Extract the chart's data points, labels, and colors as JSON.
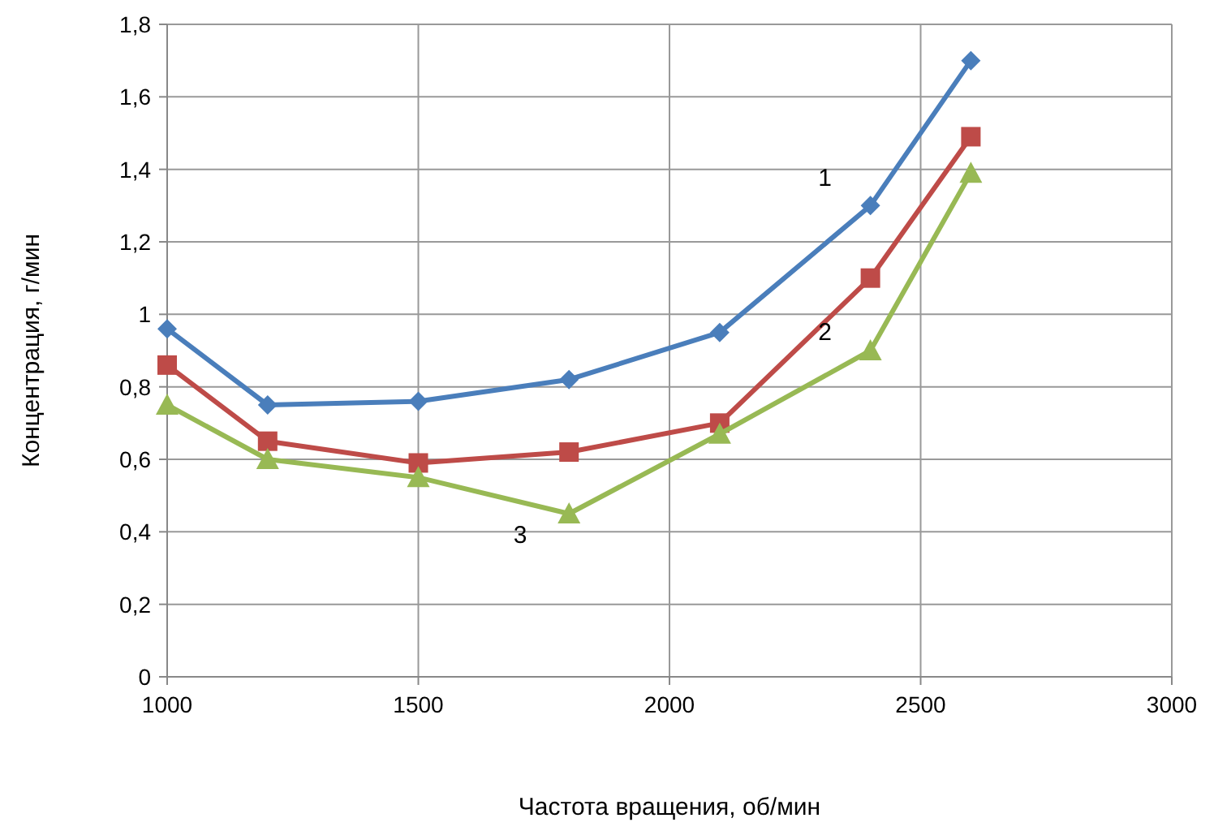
{
  "chart_data": {
    "type": "line",
    "xlabel": "Частота вращения, об/мин",
    "ylabel": "Концентрация, г/мин",
    "x": [
      1000,
      1200,
      1500,
      1800,
      2100,
      2400,
      2600
    ],
    "series": [
      {
        "name": "1",
        "color": "#4a7ebb",
        "marker": "diamond",
        "values": [
          0.96,
          0.75,
          0.76,
          0.82,
          0.95,
          1.3,
          1.7
        ]
      },
      {
        "name": "2",
        "color": "#be4b48",
        "marker": "square",
        "values": [
          0.86,
          0.65,
          0.59,
          0.62,
          0.7,
          1.1,
          1.49
        ]
      },
      {
        "name": "3",
        "color": "#98b954",
        "marker": "triangle",
        "values": [
          0.75,
          0.6,
          0.55,
          0.45,
          0.67,
          0.9,
          1.39
        ]
      }
    ],
    "xlim": [
      1000,
      3000
    ],
    "xticks": [
      1000,
      1500,
      2000,
      2500,
      3000
    ],
    "ylim": [
      0,
      1.8
    ],
    "yticks": [
      0,
      {
        "value": 0.2,
        "label": "0,2"
      },
      {
        "value": 0.4,
        "label": "0,4"
      },
      {
        "value": 0.6,
        "label": "0,6"
      },
      {
        "value": 0.8,
        "label": "0,8"
      },
      1,
      {
        "value": 1.2,
        "label": "1,2"
      },
      {
        "value": 1.4,
        "label": "1,4"
      },
      {
        "value": 1.6,
        "label": "1,6"
      },
      {
        "value": 1.8,
        "label": "1,8"
      }
    ],
    "grid": true,
    "line_style": "solid"
  }
}
